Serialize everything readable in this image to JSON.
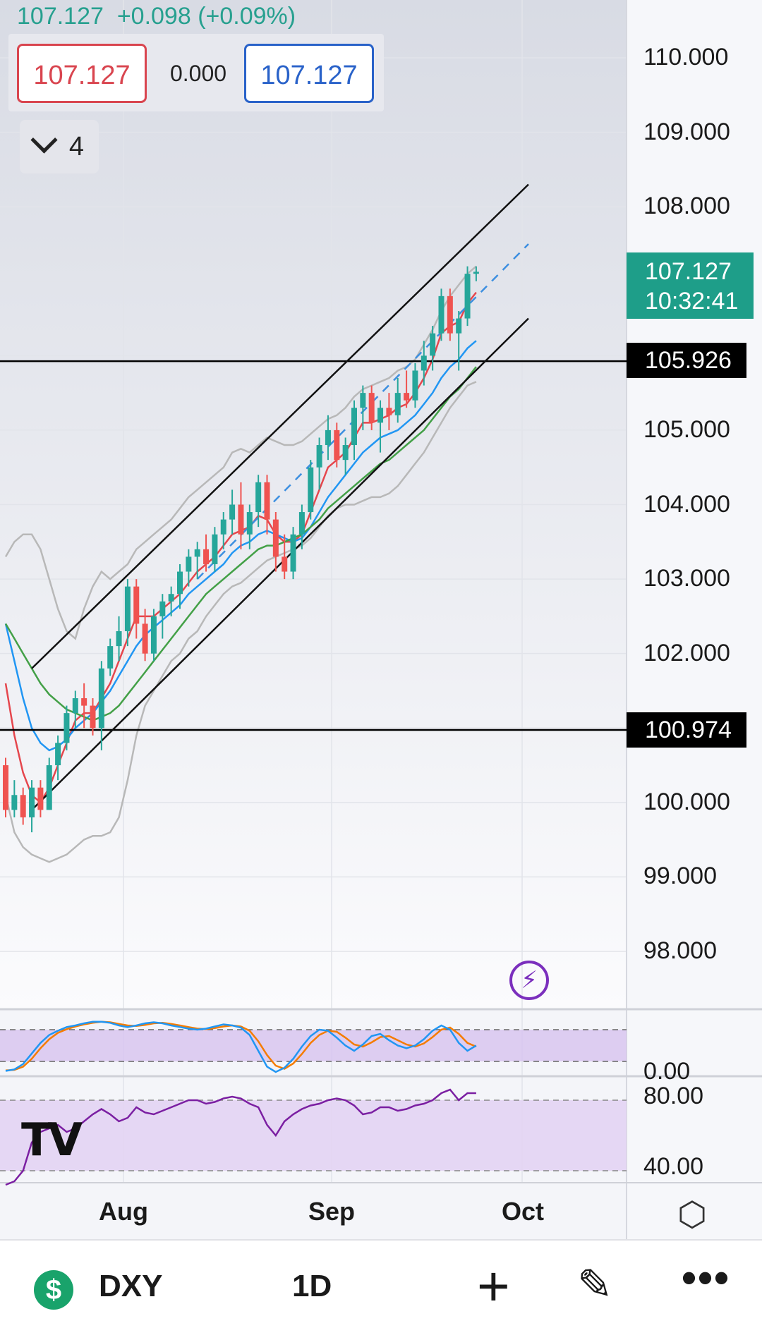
{
  "header": {
    "price": "107.127",
    "change": "+0.098 (+0.09%)",
    "sell_price": "107.127",
    "spread": "0.000",
    "buy_price": "107.127",
    "indicator_count": "4"
  },
  "price_axis": {
    "labels": [
      "110.000",
      "109.000",
      "108.000",
      "105.000",
      "104.000",
      "103.000",
      "102.000",
      "100.000",
      "99.000",
      "98.000"
    ],
    "values": [
      110,
      109,
      108,
      105,
      104,
      103,
      102,
      100,
      99,
      98
    ],
    "last_price": "107.127",
    "countdown": "10:32:41",
    "level_1": "105.926",
    "level_2": "100.974"
  },
  "stoch_axis": {
    "label": "0.00"
  },
  "rsi_axis": {
    "labels": [
      "80.00",
      "40.00"
    ],
    "values": [
      80,
      40
    ]
  },
  "time_axis": {
    "labels": [
      "Aug",
      "Sep",
      "Oct"
    ]
  },
  "bottom_bar": {
    "currency_icon": "$",
    "symbol": "DXY",
    "interval": "1D",
    "plus_icon": "+",
    "more_icon": "•••"
  },
  "colors": {
    "up": "#26a69a",
    "down": "#ef5350",
    "ma_fast": "#e5464d",
    "ma_mid": "#2196f3",
    "ma_slow": "#43a047",
    "bollinger": "#b8b8b8",
    "stoch_k": "#2196f3",
    "stoch_d": "#f57c00",
    "rsi": "#7b1fa2",
    "tag_up": "#1e9e89",
    "level": "#000000"
  },
  "chart_data": {
    "type": "candlestick",
    "symbol": "DXY",
    "interval": "1D",
    "ylim": [
      97.5,
      111
    ],
    "x_ticks": [
      {
        "label": "Aug",
        "index": 13
      },
      {
        "label": "Sep",
        "index": 36
      },
      {
        "label": "Oct",
        "index": 57
      }
    ],
    "candles": [
      [
        100.5,
        100.6,
        99.8,
        99.9
      ],
      [
        99.9,
        100.3,
        99.8,
        100.1
      ],
      [
        100.1,
        100.2,
        99.7,
        99.8
      ],
      [
        99.8,
        100.3,
        99.6,
        100.2
      ],
      [
        100.2,
        100.3,
        99.8,
        99.9
      ],
      [
        99.9,
        100.6,
        99.9,
        100.5
      ],
      [
        100.5,
        100.9,
        100.3,
        100.8
      ],
      [
        100.8,
        101.3,
        100.7,
        101.2
      ],
      [
        101.2,
        101.5,
        101.0,
        101.4
      ],
      [
        101.4,
        101.6,
        101.0,
        101.3
      ],
      [
        101.3,
        101.4,
        100.9,
        101.0
      ],
      [
        101.0,
        101.9,
        100.7,
        101.8
      ],
      [
        101.8,
        102.2,
        101.7,
        102.1
      ],
      [
        102.1,
        102.5,
        101.9,
        102.3
      ],
      [
        102.3,
        103.0,
        102.1,
        102.9
      ],
      [
        102.9,
        103.0,
        102.2,
        102.4
      ],
      [
        102.4,
        102.6,
        101.9,
        102.0
      ],
      [
        102.0,
        102.6,
        101.9,
        102.5
      ],
      [
        102.5,
        102.8,
        102.2,
        102.7
      ],
      [
        102.7,
        102.9,
        102.5,
        102.8
      ],
      [
        102.8,
        103.2,
        102.6,
        103.1
      ],
      [
        103.1,
        103.4,
        102.9,
        103.3
      ],
      [
        103.3,
        103.5,
        103.0,
        103.4
      ],
      [
        103.4,
        103.6,
        103.1,
        103.2
      ],
      [
        103.2,
        103.7,
        103.1,
        103.6
      ],
      [
        103.6,
        103.9,
        103.4,
        103.8
      ],
      [
        103.8,
        104.2,
        103.6,
        104.0
      ],
      [
        104.0,
        104.3,
        103.4,
        103.6
      ],
      [
        103.6,
        104.0,
        103.4,
        103.9
      ],
      [
        103.9,
        104.4,
        103.7,
        104.3
      ],
      [
        104.3,
        104.4,
        103.6,
        103.8
      ],
      [
        103.8,
        103.9,
        103.1,
        103.3
      ],
      [
        103.3,
        103.6,
        103.0,
        103.1
      ],
      [
        103.1,
        103.7,
        103.0,
        103.6
      ],
      [
        103.6,
        104.0,
        103.4,
        103.9
      ],
      [
        103.9,
        104.6,
        103.8,
        104.5
      ],
      [
        104.5,
        104.9,
        104.2,
        104.8
      ],
      [
        104.8,
        105.2,
        104.6,
        105.0
      ],
      [
        105.0,
        105.1,
        104.5,
        104.6
      ],
      [
        104.6,
        104.9,
        104.4,
        104.8
      ],
      [
        104.8,
        105.4,
        104.6,
        105.3
      ],
      [
        105.3,
        105.6,
        105.0,
        105.5
      ],
      [
        105.5,
        105.6,
        105.0,
        105.1
      ],
      [
        105.1,
        105.4,
        104.7,
        105.3
      ],
      [
        105.3,
        105.5,
        105.0,
        105.2
      ],
      [
        105.2,
        105.7,
        105.1,
        105.5
      ],
      [
        105.5,
        105.8,
        105.3,
        105.4
      ],
      [
        105.4,
        105.9,
        105.3,
        105.8
      ],
      [
        105.8,
        106.2,
        105.6,
        106.0
      ],
      [
        106.0,
        106.4,
        105.8,
        106.3
      ],
      [
        106.3,
        106.9,
        106.2,
        106.8
      ],
      [
        106.8,
        106.9,
        106.2,
        106.3
      ],
      [
        106.3,
        106.6,
        105.8,
        106.5
      ],
      [
        106.5,
        107.2,
        106.4,
        107.1
      ],
      [
        107.1,
        107.2,
        107.0,
        107.127
      ]
    ],
    "series": [
      {
        "name": "MA fast",
        "color": "#e5464d",
        "values": [
          101.6,
          100.9,
          100.4,
          100.1,
          100.0,
          100.2,
          100.5,
          100.8,
          101.1,
          101.2,
          101.2,
          101.4,
          101.6,
          101.9,
          102.2,
          102.5,
          102.5,
          102.5,
          102.6,
          102.7,
          102.8,
          102.95,
          103.1,
          103.2,
          103.3,
          103.45,
          103.6,
          103.65,
          103.7,
          103.85,
          103.8,
          103.6,
          103.5,
          103.5,
          103.6,
          103.9,
          104.2,
          104.5,
          104.6,
          104.7,
          104.9,
          105.1,
          105.1,
          105.15,
          105.2,
          105.3,
          105.35,
          105.5,
          105.7,
          105.95,
          106.3,
          106.4,
          106.45,
          106.7,
          106.85
        ]
      },
      {
        "name": "MA mid",
        "color": "#2196f3",
        "values": [
          102.4,
          101.9,
          101.4,
          101.0,
          100.8,
          100.7,
          100.75,
          100.85,
          101.0,
          101.1,
          101.2,
          101.35,
          101.5,
          101.7,
          101.9,
          102.1,
          102.25,
          102.35,
          102.45,
          102.55,
          102.65,
          102.8,
          102.9,
          103.0,
          103.1,
          103.2,
          103.35,
          103.45,
          103.5,
          103.6,
          103.65,
          103.6,
          103.55,
          103.5,
          103.55,
          103.7,
          103.9,
          104.1,
          104.25,
          104.4,
          104.55,
          104.7,
          104.8,
          104.9,
          104.95,
          105.0,
          105.1,
          105.2,
          105.35,
          105.5,
          105.7,
          105.85,
          105.95,
          106.1,
          106.2
        ]
      },
      {
        "name": "MA slow",
        "color": "#43a047",
        "values": [
          102.4,
          102.2,
          102.0,
          101.8,
          101.6,
          101.45,
          101.35,
          101.25,
          101.2,
          101.15,
          101.1,
          101.15,
          101.2,
          101.3,
          101.45,
          101.6,
          101.75,
          101.9,
          102.05,
          102.2,
          102.35,
          102.5,
          102.65,
          102.8,
          102.9,
          103.0,
          103.1,
          103.2,
          103.3,
          103.4,
          103.45,
          103.45,
          103.5,
          103.55,
          103.6,
          103.7,
          103.8,
          103.95,
          104.05,
          104.15,
          104.25,
          104.35,
          104.45,
          104.55,
          104.6,
          104.7,
          104.8,
          104.9,
          105.0,
          105.15,
          105.3,
          105.45,
          105.55,
          105.7,
          105.85
        ]
      },
      {
        "name": "BB upper",
        "color": "#b8b8b8",
        "values": [
          103.3,
          103.5,
          103.6,
          103.6,
          103.4,
          103.0,
          102.6,
          102.3,
          102.2,
          102.6,
          102.9,
          103.1,
          103.0,
          103.1,
          103.2,
          103.4,
          103.5,
          103.6,
          103.7,
          103.8,
          103.95,
          104.1,
          104.2,
          104.3,
          104.4,
          104.5,
          104.7,
          104.75,
          104.7,
          104.8,
          104.9,
          104.85,
          104.8,
          104.8,
          104.85,
          104.95,
          105.05,
          105.15,
          105.2,
          105.3,
          105.45,
          105.55,
          105.6,
          105.65,
          105.7,
          105.8,
          105.85,
          105.95,
          106.15,
          106.35,
          106.6,
          106.8,
          106.95,
          107.1,
          107.2
        ]
      },
      {
        "name": "BB lower",
        "color": "#b8b8b8",
        "values": [
          100.1,
          99.6,
          99.4,
          99.3,
          99.25,
          99.2,
          99.25,
          99.3,
          99.4,
          99.5,
          99.55,
          99.55,
          99.6,
          99.8,
          100.3,
          100.9,
          101.3,
          101.5,
          101.7,
          101.9,
          102.0,
          102.2,
          102.3,
          102.5,
          102.65,
          102.8,
          102.9,
          102.95,
          103.05,
          103.15,
          103.25,
          103.3,
          103.35,
          103.4,
          103.45,
          103.55,
          103.7,
          103.85,
          103.95,
          104.0,
          104.0,
          104.05,
          104.1,
          104.1,
          104.15,
          104.25,
          104.4,
          104.55,
          104.7,
          104.9,
          105.1,
          105.3,
          105.45,
          105.6,
          105.65
        ]
      }
    ],
    "channel": {
      "upper": [
        [
          3,
          101.8
        ],
        [
          60,
          108.3
        ]
      ],
      "lower": [
        [
          3,
          99.9
        ],
        [
          60,
          106.5
        ]
      ],
      "mid": [
        [
          22,
          103.0
        ],
        [
          60,
          107.5
        ]
      ]
    },
    "horizontal_levels": [
      105.926,
      100.974
    ],
    "stochastic": {
      "lines": [
        80,
        20
      ],
      "k": [
        2,
        5,
        15,
        35,
        55,
        70,
        78,
        85,
        88,
        92,
        95,
        95,
        93,
        88,
        85,
        88,
        92,
        94,
        92,
        88,
        85,
        82,
        80,
        82,
        86,
        90,
        88,
        84,
        70,
        40,
        10,
        0,
        8,
        25,
        48,
        68,
        80,
        78,
        65,
        50,
        40,
        52,
        68,
        72,
        60,
        50,
        45,
        50,
        62,
        78,
        88,
        80,
        55,
        40,
        50
      ],
      "d": [
        3,
        4,
        10,
        25,
        45,
        62,
        74,
        81,
        86,
        90,
        93,
        95,
        94,
        91,
        88,
        87,
        89,
        92,
        93,
        91,
        88,
        85,
        82,
        81,
        83,
        86,
        88,
        86,
        78,
        58,
        32,
        12,
        6,
        16,
        34,
        55,
        70,
        78,
        76,
        65,
        52,
        48,
        56,
        66,
        68,
        60,
        52,
        48,
        54,
        66,
        80,
        84,
        72,
        55,
        48
      ]
    },
    "rsi": {
      "lines": [
        70,
        30
      ],
      "values": [
        22,
        24,
        30,
        46,
        52,
        54,
        56,
        52,
        54,
        58,
        62,
        65,
        62,
        58,
        60,
        66,
        63,
        62,
        64,
        66,
        68,
        70,
        70,
        68,
        69,
        71,
        72,
        71,
        68,
        66,
        56,
        50,
        58,
        62,
        65,
        67,
        68,
        70,
        71,
        70,
        67,
        62,
        63,
        66,
        66,
        64,
        65,
        67,
        68,
        70,
        74,
        76,
        70,
        74,
        74
      ]
    }
  }
}
